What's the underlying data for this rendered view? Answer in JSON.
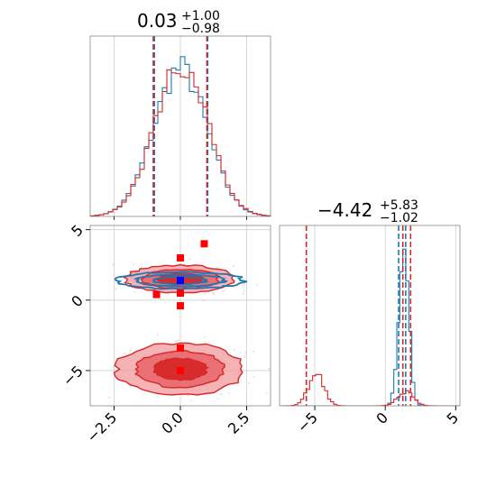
{
  "chart_data": [
    {
      "panel": "marginal-x",
      "type": "histogram",
      "title_value": "0.03",
      "title_plus": "+1.00",
      "title_minus": "−0.98",
      "xlim": [
        -3.4,
        3.4
      ],
      "grid": true,
      "quantiles": {
        "blue": [
          -0.98,
          1.03
        ],
        "red": [
          -1.02,
          1.0
        ]
      },
      "series": [
        {
          "color": "#1f77b4",
          "peak": 0.0,
          "width": 1.0,
          "level_scale": 1.0
        },
        {
          "color": "#d62728",
          "peak": 0.03,
          "width": 1.0,
          "level_scale": 1.03
        }
      ]
    },
    {
      "panel": "joint",
      "type": "contour",
      "xlim": [
        -3.4,
        3.4
      ],
      "ylim": [
        -7.5,
        5.3
      ],
      "xticks": [
        -2.5,
        0.0,
        2.5
      ],
      "xtick_labels": [
        "−2.5",
        "0.0",
        "2.5"
      ],
      "yticks": [
        -5,
        0,
        5
      ],
      "ytick_labels": [
        "−5",
        "0",
        "5"
      ],
      "grid": true,
      "red_modes": [
        {
          "cx": 0.0,
          "cy": 1.5,
          "rx": 1.8,
          "ry": 0.85
        },
        {
          "cx": 0.0,
          "cy": -4.9,
          "rx": 2.1,
          "ry": 1.6
        }
      ],
      "blue_mode": {
        "cx": 0.0,
        "cy": 1.4,
        "rx": 2.4,
        "ry": 0.6
      },
      "markers": [
        {
          "color": "#0000ff",
          "x": 0.0,
          "y": 1.4
        },
        {
          "color": "#ff0000",
          "x": 0.0,
          "y": 3.0
        },
        {
          "color": "#ff0000",
          "x": 0.0,
          "y": 0.5
        },
        {
          "color": "#ff0000",
          "x": -0.9,
          "y": 0.4
        },
        {
          "color": "#ff0000",
          "x": 0.0,
          "y": -0.4
        },
        {
          "color": "#ff0000",
          "x": 0.0,
          "y": -3.4
        },
        {
          "color": "#ff0000",
          "x": 0.0,
          "y": -5.0
        },
        {
          "color": "#ff0000",
          "x": 0.9,
          "y": 4.0
        }
      ]
    },
    {
      "panel": "marginal-y",
      "type": "histogram",
      "title_value": "−4.42",
      "title_plus": "+5.83",
      "title_minus": "−1.02",
      "xlim": [
        -7.5,
        5.3
      ],
      "xticks": [
        -5,
        0,
        5
      ],
      "xtick_labels": [
        "−5",
        "0",
        "5"
      ],
      "grid": true,
      "quantiles": {
        "blue": [
          0.95,
          1.45
        ],
        "red": [
          -5.6,
          1.25,
          1.8
        ]
      },
      "series": [
        {
          "color": "#1f77b4",
          "modes": [
            {
              "mu": 1.3,
              "sigma": 0.35,
              "amp": 1.0
            }
          ]
        },
        {
          "color": "#d62728",
          "modes": [
            {
              "mu": -4.9,
              "sigma": 0.55,
              "amp": 0.19
            },
            {
              "mu": 1.45,
              "sigma": 0.55,
              "amp": 0.085
            }
          ]
        }
      ]
    }
  ]
}
